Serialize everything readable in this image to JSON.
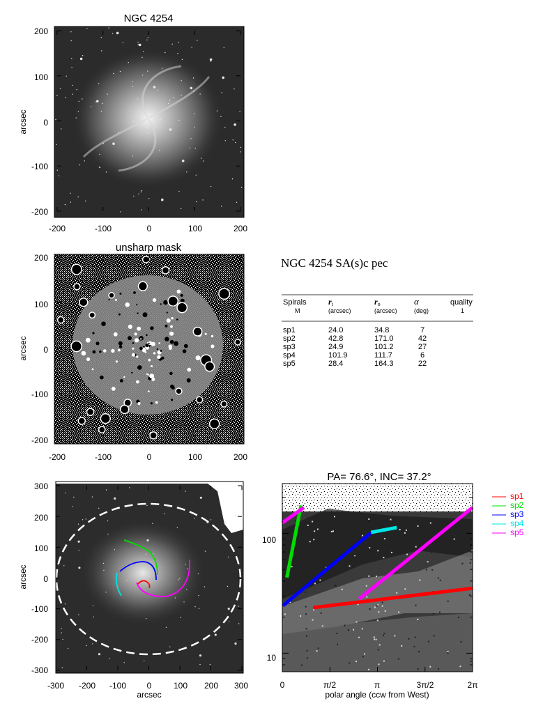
{
  "panel1": {
    "title": "NGC 4254",
    "ylabel": "arcsec",
    "xticks": [
      "-200",
      "-100",
      "0",
      "100",
      "200"
    ],
    "yticks": [
      "200",
      "100",
      "0",
      "-100",
      "-200"
    ]
  },
  "panel2": {
    "title": "unsharp mask",
    "ylabel": "arcsec",
    "xticks": [
      "-200",
      "-100",
      "0",
      "100",
      "200"
    ],
    "yticks": [
      "200",
      "100",
      "0",
      "-100",
      "-200"
    ]
  },
  "info": {
    "heading": "NGC 4254  SA(s)c pec",
    "col_headers": [
      {
        "top": "Spirals",
        "sub": "M"
      },
      {
        "top": "r",
        "suffix": "i",
        "sub": "(arcsec)"
      },
      {
        "top": "r",
        "suffix": "o",
        "sub": "(arcsec)"
      },
      {
        "top": "α",
        "sub": "(deg)"
      },
      {
        "top": "quality",
        "sub": "1"
      }
    ],
    "rows": [
      [
        "sp1",
        "24.0",
        "34.8",
        "7"
      ],
      [
        "sp2",
        "42.8",
        "171.0",
        "42"
      ],
      [
        "sp3",
        "24.9",
        "101.2",
        "27"
      ],
      [
        "sp4",
        "101.9",
        "111.7",
        "6"
      ],
      [
        "sp5",
        "28.4",
        "164.3",
        "22"
      ]
    ]
  },
  "panel3": {
    "xlabel": "arcsec",
    "ylabel": "arcsec",
    "xticks": [
      "-300",
      "-200",
      "-100",
      "0",
      "100",
      "200",
      "300"
    ],
    "yticks": [
      "300",
      "200",
      "100",
      "0",
      "-100",
      "-200",
      "-300"
    ]
  },
  "panel4": {
    "title": "PA= 76.6°, INC= 37.2°",
    "xlabel": "polar angle (ccw from West)",
    "xticks": [
      "0",
      "π/2",
      "π",
      "3π/2",
      "2π"
    ],
    "yticks": [
      "100",
      "10"
    ]
  },
  "legend": [
    {
      "label": "sp1",
      "color": "#ff0000"
    },
    {
      "label": "sp2",
      "color": "#00dd00"
    },
    {
      "label": "sp3",
      "color": "#0000ff"
    },
    {
      "label": "sp4",
      "color": "#00e5e5"
    },
    {
      "label": "sp5",
      "color": "#ff00ff"
    }
  ],
  "chart_data": {
    "type": "line",
    "title": "PA= 76.6°, INC= 37.2°",
    "xlabel": "polar angle (ccw from West)",
    "ylabel": "",
    "y_scale": "log",
    "xlim": [
      0,
      6.2832
    ],
    "ylim": [
      7,
      260
    ],
    "series": [
      {
        "name": "sp1",
        "color": "#ff0000",
        "x": [
          1.02,
          6.28
        ],
        "y": [
          24.0,
          34.8
        ]
      },
      {
        "name": "sp2",
        "color": "#00dd00",
        "x": [
          0.15,
          0.62
        ],
        "y": [
          42.8,
          171.0
        ]
      },
      {
        "name": "sp3",
        "color": "#0000ff",
        "x": [
          0.02,
          2.93
        ],
        "y": [
          24.9,
          101.2
        ]
      },
      {
        "name": "sp4",
        "color": "#00e5e5",
        "x": [
          2.93,
          3.78
        ],
        "y": [
          101.9,
          111.7
        ]
      },
      {
        "name": "sp5",
        "color": "#ff00ff",
        "x": [
          2.54,
          6.28
        ],
        "y": [
          28.4,
          164.3
        ]
      },
      {
        "name": "sp5",
        "color": "#ff00ff",
        "x": [
          0.0,
          0.71
        ],
        "y": [
          122.0,
          164.3
        ]
      }
    ]
  }
}
